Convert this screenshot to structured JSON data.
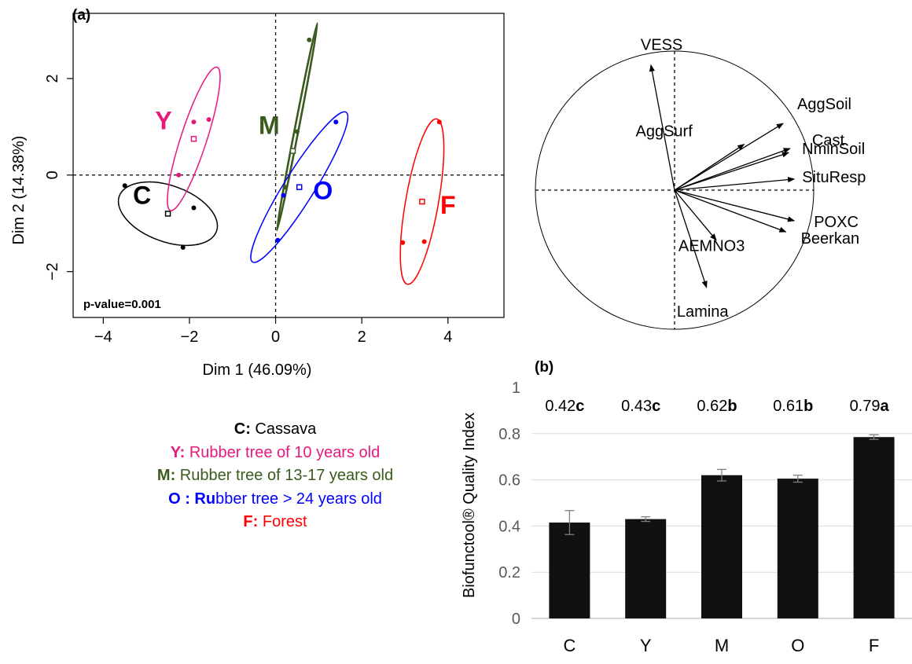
{
  "panels": {
    "a_label": "(a)",
    "b_label": "(b)"
  },
  "colors": {
    "C": "#000000",
    "Y": "#e6197d",
    "M": "#3a5a1e",
    "O": "#0000ff",
    "F": "#ff0000"
  },
  "chart_data": [
    {
      "type": "scatter",
      "xlabel": "Dim 1 (46.09%)",
      "ylabel": "Dim 2 (14.38%)",
      "xlim": [
        -4.7,
        5.3
      ],
      "ylim": [
        -2.95,
        3.35
      ],
      "xticks": [
        -4,
        -2,
        0,
        2,
        4
      ],
      "yticks": [
        -2,
        0,
        2
      ],
      "annotation": "p-value=0.001",
      "grid": false,
      "reference_lines": [
        "x=0",
        "y=0"
      ],
      "groups": [
        {
          "label": "C",
          "points": [
            [
              -3.5,
              -0.22
            ],
            [
              -1.9,
              -0.68
            ],
            [
              -2.15,
              -1.5
            ]
          ],
          "centroid": [
            -2.5,
            -0.8
          ],
          "ellipse": {
            "center": [
              -2.5,
              -0.8
            ],
            "rx": 1.2,
            "ry": 0.65,
            "angle": -20
          },
          "label_pos": [
            -3.1,
            -0.6
          ]
        },
        {
          "label": "Y",
          "points": [
            [
              -1.9,
              1.1
            ],
            [
              -1.55,
              1.15
            ],
            [
              -2.25,
              0.0
            ]
          ],
          "centroid": [
            -1.9,
            0.75
          ],
          "ellipse": {
            "center": [
              -1.9,
              0.75
            ],
            "rx": 1.75,
            "ry": 0.3,
            "angle": 72
          },
          "label_pos": [
            -2.6,
            0.95
          ]
        },
        {
          "label": "M",
          "points": [
            [
              0.78,
              2.8
            ],
            [
              0.5,
              0.9
            ],
            [
              0.22,
              -0.25
            ],
            [
              0.05,
              -1.35
            ]
          ],
          "centroid": [
            0.4,
            0.5
          ],
          "ellipse": {
            "center": [
              0.5,
              1.0
            ],
            "rx": 2.45,
            "ry": 0.045,
            "angle": 79
          },
          "label_pos": [
            -0.15,
            0.85
          ]
        },
        {
          "label": "O",
          "points": [
            [
              1.4,
              1.1
            ],
            [
              0.18,
              -0.42
            ],
            [
              0.05,
              -1.35
            ]
          ],
          "centroid": [
            0.55,
            -0.25
          ],
          "ellipse": {
            "center": [
              0.55,
              -0.25
            ],
            "rx": 2.05,
            "ry": 0.35,
            "angle": 58
          },
          "label_pos": [
            1.1,
            -0.5
          ]
        },
        {
          "label": "F",
          "points": [
            [
              3.8,
              1.1
            ],
            [
              2.95,
              -1.4
            ],
            [
              3.45,
              -1.38
            ]
          ],
          "centroid": [
            3.4,
            -0.55
          ],
          "ellipse": {
            "center": [
              3.4,
              -0.55
            ],
            "rx": 1.95,
            "ry": 0.38,
            "angle": 80
          },
          "label_pos": [
            4.0,
            -0.8
          ]
        }
      ]
    },
    {
      "type": "correlation_circle",
      "variables": [
        {
          "name": "VESS",
          "x": -0.17,
          "y": 0.9
        },
        {
          "name": "AggSoil",
          "x": 0.78,
          "y": 0.48
        },
        {
          "name": "AggSurf",
          "x": 0.5,
          "y": 0.33
        },
        {
          "name": "Cast",
          "x": 0.83,
          "y": 0.3
        },
        {
          "name": "NminSoil",
          "x": 0.82,
          "y": 0.27
        },
        {
          "name": "SituResp",
          "x": 0.86,
          "y": 0.08
        },
        {
          "name": "POXC",
          "x": 0.86,
          "y": -0.22
        },
        {
          "name": "Beerkan",
          "x": 0.8,
          "y": -0.3
        },
        {
          "name": "AEMNO3",
          "x": 0.3,
          "y": -0.36
        },
        {
          "name": "Lamina",
          "x": 0.23,
          "y": -0.7
        }
      ]
    },
    {
      "type": "bar",
      "ylabel": "Biofunctool® Quality Index",
      "categories": [
        "C",
        "Y",
        "M",
        "O",
        "F"
      ],
      "values": [
        0.415,
        0.43,
        0.62,
        0.605,
        0.785
      ],
      "errors": [
        0.052,
        0.01,
        0.025,
        0.015,
        0.01
      ],
      "ylim": [
        0,
        1
      ],
      "yticks": [
        "0",
        "0.2",
        "0.4",
        "0.6",
        "0.8",
        "1"
      ],
      "bar_labels": [
        {
          "value": "0.42",
          "letter": "c"
        },
        {
          "value": "0.43",
          "letter": "c"
        },
        {
          "value": "0.62",
          "letter": "b"
        },
        {
          "value": "0.61",
          "letter": "b"
        },
        {
          "value": "0.79",
          "letter": "a"
        }
      ],
      "grid": true,
      "bar_color": "#111111"
    }
  ],
  "legend": [
    {
      "key": "C:",
      "text": " Cassava",
      "color": "#000000"
    },
    {
      "key": "Y:",
      "text": " Rubber tree of 10 years old",
      "color": "#e6197d"
    },
    {
      "key": "M:",
      "text": " Rubber tree of 13-17 years old",
      "color": "#3a5a1e"
    },
    {
      "key": "O : Ru",
      "text": "bber tree > 24 years old",
      "color": "#0000ff"
    },
    {
      "key": "F:",
      "text": " Forest",
      "color": "#ff0000"
    }
  ]
}
